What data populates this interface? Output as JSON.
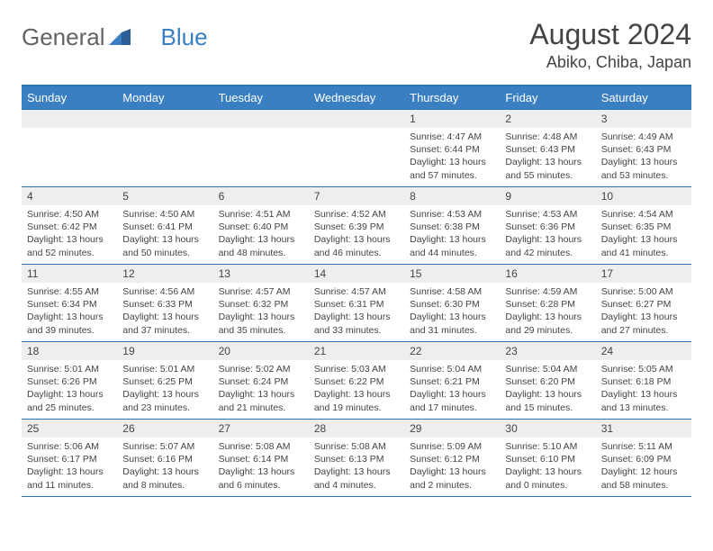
{
  "logo": {
    "text1": "General",
    "text2": "Blue"
  },
  "title": {
    "month": "August 2024",
    "location": "Abiko, Chiba, Japan"
  },
  "style": {
    "header_bg": "#3a7fc2",
    "header_text": "#ffffff",
    "border_color": "#2b74b8",
    "daynum_bg": "#eeeeee",
    "text_color": "#444444"
  },
  "days": [
    "Sunday",
    "Monday",
    "Tuesday",
    "Wednesday",
    "Thursday",
    "Friday",
    "Saturday"
  ],
  "weeks": [
    [
      null,
      null,
      null,
      null,
      {
        "n": "1",
        "sr": "Sunrise: 4:47 AM",
        "ss": "Sunset: 6:44 PM",
        "dl": "Daylight: 13 hours and 57 minutes."
      },
      {
        "n": "2",
        "sr": "Sunrise: 4:48 AM",
        "ss": "Sunset: 6:43 PM",
        "dl": "Daylight: 13 hours and 55 minutes."
      },
      {
        "n": "3",
        "sr": "Sunrise: 4:49 AM",
        "ss": "Sunset: 6:43 PM",
        "dl": "Daylight: 13 hours and 53 minutes."
      }
    ],
    [
      {
        "n": "4",
        "sr": "Sunrise: 4:50 AM",
        "ss": "Sunset: 6:42 PM",
        "dl": "Daylight: 13 hours and 52 minutes."
      },
      {
        "n": "5",
        "sr": "Sunrise: 4:50 AM",
        "ss": "Sunset: 6:41 PM",
        "dl": "Daylight: 13 hours and 50 minutes."
      },
      {
        "n": "6",
        "sr": "Sunrise: 4:51 AM",
        "ss": "Sunset: 6:40 PM",
        "dl": "Daylight: 13 hours and 48 minutes."
      },
      {
        "n": "7",
        "sr": "Sunrise: 4:52 AM",
        "ss": "Sunset: 6:39 PM",
        "dl": "Daylight: 13 hours and 46 minutes."
      },
      {
        "n": "8",
        "sr": "Sunrise: 4:53 AM",
        "ss": "Sunset: 6:38 PM",
        "dl": "Daylight: 13 hours and 44 minutes."
      },
      {
        "n": "9",
        "sr": "Sunrise: 4:53 AM",
        "ss": "Sunset: 6:36 PM",
        "dl": "Daylight: 13 hours and 42 minutes."
      },
      {
        "n": "10",
        "sr": "Sunrise: 4:54 AM",
        "ss": "Sunset: 6:35 PM",
        "dl": "Daylight: 13 hours and 41 minutes."
      }
    ],
    [
      {
        "n": "11",
        "sr": "Sunrise: 4:55 AM",
        "ss": "Sunset: 6:34 PM",
        "dl": "Daylight: 13 hours and 39 minutes."
      },
      {
        "n": "12",
        "sr": "Sunrise: 4:56 AM",
        "ss": "Sunset: 6:33 PM",
        "dl": "Daylight: 13 hours and 37 minutes."
      },
      {
        "n": "13",
        "sr": "Sunrise: 4:57 AM",
        "ss": "Sunset: 6:32 PM",
        "dl": "Daylight: 13 hours and 35 minutes."
      },
      {
        "n": "14",
        "sr": "Sunrise: 4:57 AM",
        "ss": "Sunset: 6:31 PM",
        "dl": "Daylight: 13 hours and 33 minutes."
      },
      {
        "n": "15",
        "sr": "Sunrise: 4:58 AM",
        "ss": "Sunset: 6:30 PM",
        "dl": "Daylight: 13 hours and 31 minutes."
      },
      {
        "n": "16",
        "sr": "Sunrise: 4:59 AM",
        "ss": "Sunset: 6:28 PM",
        "dl": "Daylight: 13 hours and 29 minutes."
      },
      {
        "n": "17",
        "sr": "Sunrise: 5:00 AM",
        "ss": "Sunset: 6:27 PM",
        "dl": "Daylight: 13 hours and 27 minutes."
      }
    ],
    [
      {
        "n": "18",
        "sr": "Sunrise: 5:01 AM",
        "ss": "Sunset: 6:26 PM",
        "dl": "Daylight: 13 hours and 25 minutes."
      },
      {
        "n": "19",
        "sr": "Sunrise: 5:01 AM",
        "ss": "Sunset: 6:25 PM",
        "dl": "Daylight: 13 hours and 23 minutes."
      },
      {
        "n": "20",
        "sr": "Sunrise: 5:02 AM",
        "ss": "Sunset: 6:24 PM",
        "dl": "Daylight: 13 hours and 21 minutes."
      },
      {
        "n": "21",
        "sr": "Sunrise: 5:03 AM",
        "ss": "Sunset: 6:22 PM",
        "dl": "Daylight: 13 hours and 19 minutes."
      },
      {
        "n": "22",
        "sr": "Sunrise: 5:04 AM",
        "ss": "Sunset: 6:21 PM",
        "dl": "Daylight: 13 hours and 17 minutes."
      },
      {
        "n": "23",
        "sr": "Sunrise: 5:04 AM",
        "ss": "Sunset: 6:20 PM",
        "dl": "Daylight: 13 hours and 15 minutes."
      },
      {
        "n": "24",
        "sr": "Sunrise: 5:05 AM",
        "ss": "Sunset: 6:18 PM",
        "dl": "Daylight: 13 hours and 13 minutes."
      }
    ],
    [
      {
        "n": "25",
        "sr": "Sunrise: 5:06 AM",
        "ss": "Sunset: 6:17 PM",
        "dl": "Daylight: 13 hours and 11 minutes."
      },
      {
        "n": "26",
        "sr": "Sunrise: 5:07 AM",
        "ss": "Sunset: 6:16 PM",
        "dl": "Daylight: 13 hours and 8 minutes."
      },
      {
        "n": "27",
        "sr": "Sunrise: 5:08 AM",
        "ss": "Sunset: 6:14 PM",
        "dl": "Daylight: 13 hours and 6 minutes."
      },
      {
        "n": "28",
        "sr": "Sunrise: 5:08 AM",
        "ss": "Sunset: 6:13 PM",
        "dl": "Daylight: 13 hours and 4 minutes."
      },
      {
        "n": "29",
        "sr": "Sunrise: 5:09 AM",
        "ss": "Sunset: 6:12 PM",
        "dl": "Daylight: 13 hours and 2 minutes."
      },
      {
        "n": "30",
        "sr": "Sunrise: 5:10 AM",
        "ss": "Sunset: 6:10 PM",
        "dl": "Daylight: 13 hours and 0 minutes."
      },
      {
        "n": "31",
        "sr": "Sunrise: 5:11 AM",
        "ss": "Sunset: 6:09 PM",
        "dl": "Daylight: 12 hours and 58 minutes."
      }
    ]
  ]
}
